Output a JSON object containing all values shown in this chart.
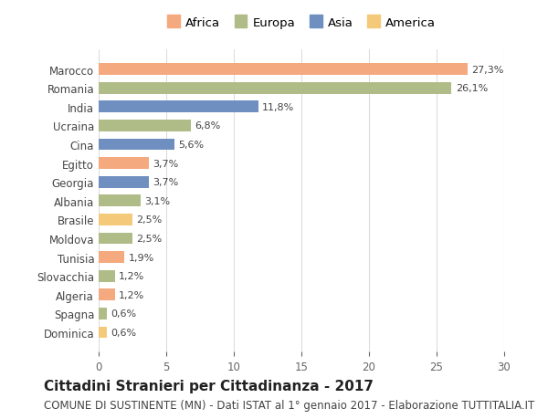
{
  "categories": [
    "Marocco",
    "Romania",
    "India",
    "Ucraina",
    "Cina",
    "Egitto",
    "Georgia",
    "Albania",
    "Brasile",
    "Moldova",
    "Tunisia",
    "Slovacchia",
    "Algeria",
    "Spagna",
    "Dominica"
  ],
  "values": [
    27.3,
    26.1,
    11.8,
    6.8,
    5.6,
    3.7,
    3.7,
    3.1,
    2.5,
    2.5,
    1.9,
    1.2,
    1.2,
    0.6,
    0.6
  ],
  "labels": [
    "27,3%",
    "26,1%",
    "11,8%",
    "6,8%",
    "5,6%",
    "3,7%",
    "3,7%",
    "3,1%",
    "2,5%",
    "2,5%",
    "1,9%",
    "1,2%",
    "1,2%",
    "0,6%",
    "0,6%"
  ],
  "continents": [
    "Africa",
    "Europa",
    "Asia",
    "Europa",
    "Asia",
    "Africa",
    "Asia",
    "Europa",
    "America",
    "Europa",
    "Africa",
    "Europa",
    "Africa",
    "Europa",
    "America"
  ],
  "continent_colors": {
    "Africa": "#F4A97F",
    "Europa": "#AFBC88",
    "Asia": "#6E8FC0",
    "America": "#F5C97A"
  },
  "legend_order": [
    "Africa",
    "Europa",
    "Asia",
    "America"
  ],
  "title": "Cittadini Stranieri per Cittadinanza - 2017",
  "subtitle": "COMUNE DI SUSTINENTE (MN) - Dati ISTAT al 1° gennaio 2017 - Elaborazione TUTTITALIA.IT",
  "xlim": [
    0,
    30
  ],
  "xticks": [
    0,
    5,
    10,
    15,
    20,
    25,
    30
  ],
  "background_color": "#ffffff",
  "grid_color": "#dddddd",
  "title_fontsize": 11,
  "subtitle_fontsize": 8.5,
  "label_fontsize": 8,
  "tick_fontsize": 8.5,
  "bar_height": 0.62
}
